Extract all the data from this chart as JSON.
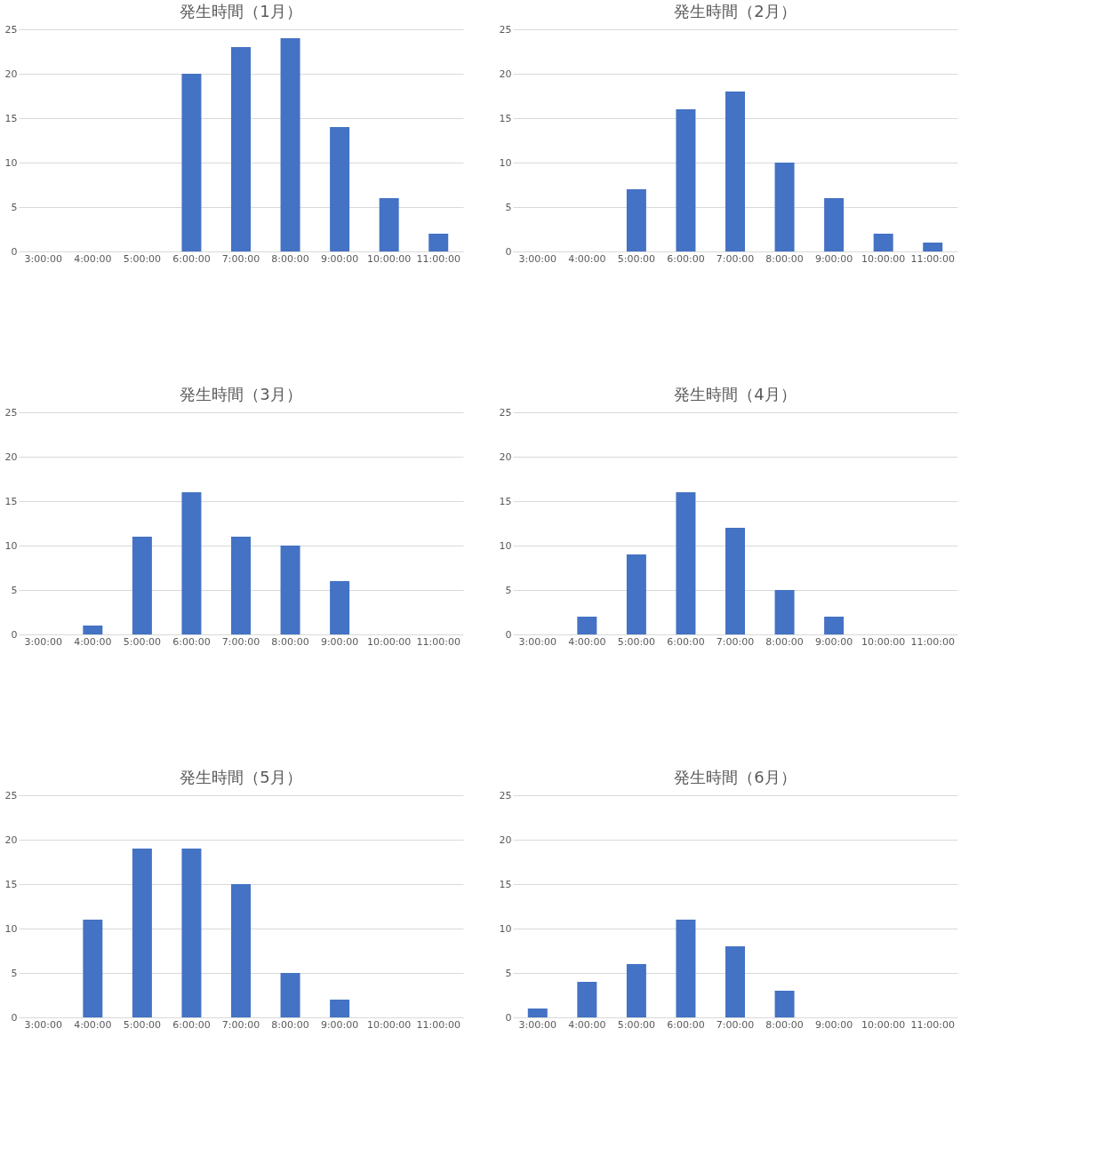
{
  "chart_data": [
    {
      "type": "bar",
      "title": "発生時間（1月）",
      "categories": [
        "3:00:00",
        "4:00:00",
        "5:00:00",
        "6:00:00",
        "7:00:00",
        "8:00:00",
        "9:00:00",
        "10:00:00",
        "11:00:00"
      ],
      "values": [
        0,
        0,
        0,
        20,
        23,
        24,
        14,
        6,
        2
      ],
      "color": "#4472c4",
      "ylim": [
        0,
        25
      ],
      "yticks": [
        0,
        5,
        10,
        15,
        20,
        25
      ],
      "grid": "y"
    },
    {
      "type": "bar",
      "title": "発生時間（2月）",
      "categories": [
        "3:00:00",
        "4:00:00",
        "5:00:00",
        "6:00:00",
        "7:00:00",
        "8:00:00",
        "9:00:00",
        "10:00:00",
        "11:00:00"
      ],
      "values": [
        0,
        0,
        7,
        16,
        18,
        10,
        6,
        2,
        1
      ],
      "color": "#4472c4",
      "ylim": [
        0,
        25
      ],
      "yticks": [
        0,
        5,
        10,
        15,
        20,
        25
      ],
      "grid": "y"
    },
    {
      "type": "bar",
      "title": "発生時間（3月）",
      "categories": [
        "3:00:00",
        "4:00:00",
        "5:00:00",
        "6:00:00",
        "7:00:00",
        "8:00:00",
        "9:00:00",
        "10:00:00",
        "11:00:00"
      ],
      "values": [
        0,
        1,
        11,
        16,
        11,
        10,
        6,
        0,
        0
      ],
      "color": "#4472c4",
      "ylim": [
        0,
        25
      ],
      "yticks": [
        0,
        5,
        10,
        15,
        20,
        25
      ],
      "grid": "y"
    },
    {
      "type": "bar",
      "title": "発生時間（4月）",
      "categories": [
        "3:00:00",
        "4:00:00",
        "5:00:00",
        "6:00:00",
        "7:00:00",
        "8:00:00",
        "9:00:00",
        "10:00:00",
        "11:00:00"
      ],
      "values": [
        0,
        2,
        9,
        16,
        12,
        5,
        2,
        0,
        0
      ],
      "color": "#4472c4",
      "ylim": [
        0,
        25
      ],
      "yticks": [
        0,
        5,
        10,
        15,
        20,
        25
      ],
      "grid": "y"
    },
    {
      "type": "bar",
      "title": "発生時間（5月）",
      "categories": [
        "3:00:00",
        "4:00:00",
        "5:00:00",
        "6:00:00",
        "7:00:00",
        "8:00:00",
        "9:00:00",
        "10:00:00",
        "11:00:00"
      ],
      "values": [
        0,
        11,
        19,
        19,
        15,
        5,
        2,
        0,
        0
      ],
      "color": "#4472c4",
      "ylim": [
        0,
        25
      ],
      "yticks": [
        0,
        5,
        10,
        15,
        20,
        25
      ],
      "grid": "y"
    },
    {
      "type": "bar",
      "title": "発生時間（6月）",
      "categories": [
        "3:00:00",
        "4:00:00",
        "5:00:00",
        "6:00:00",
        "7:00:00",
        "8:00:00",
        "9:00:00",
        "10:00:00",
        "11:00:00"
      ],
      "values": [
        1,
        4,
        6,
        11,
        8,
        3,
        0,
        0,
        0
      ],
      "color": "#4472c4",
      "ylim": [
        0,
        25
      ],
      "yticks": [
        0,
        5,
        10,
        15,
        20,
        25
      ],
      "grid": "y"
    }
  ]
}
